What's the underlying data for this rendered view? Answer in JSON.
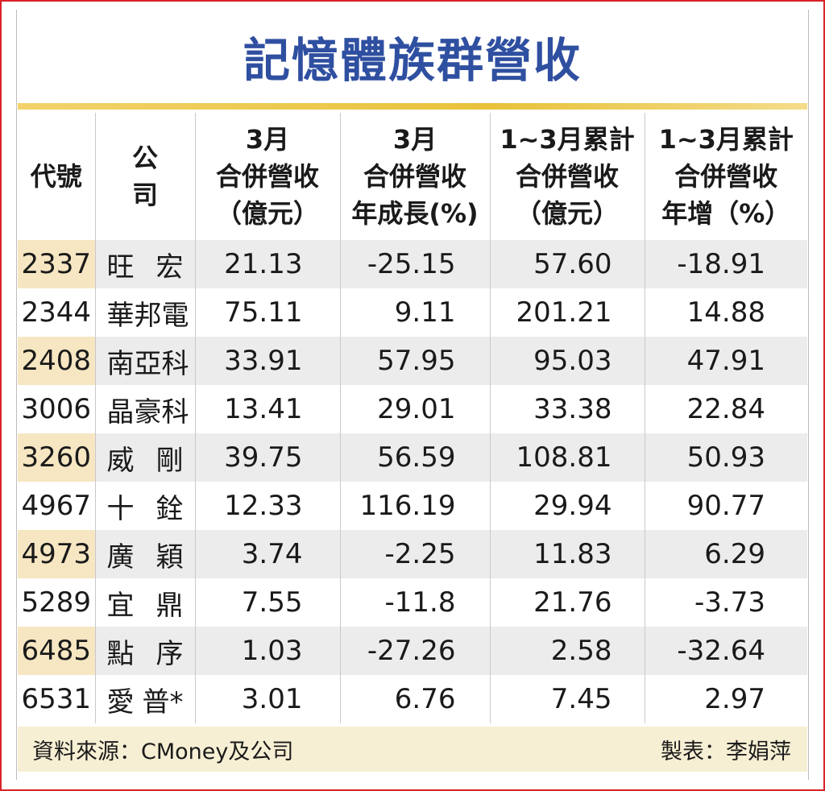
{
  "title": "記憶體族群營收",
  "headers": [
    "代號",
    "公　　司",
    "3月\n合併營收\n（億元）",
    "3月\n合併營收\n年成長(%)",
    "1~3月累計\n合併營收\n（億元）",
    "1~3月累計\n合併營收\n年增（%）"
  ],
  "rows": [
    {
      "code": "2337",
      "company": [
        "旺",
        "宏"
      ],
      "mar_rev": "21.13",
      "mar_yoy": "-25.15",
      "q_rev": "57.60",
      "q_yoy": "-18.91"
    },
    {
      "code": "2344",
      "company": [
        "華邦電"
      ],
      "mar_rev": "75.11",
      "mar_yoy": "9.11",
      "q_rev": "201.21",
      "q_yoy": "14.88"
    },
    {
      "code": "2408",
      "company": [
        "南亞科"
      ],
      "mar_rev": "33.91",
      "mar_yoy": "57.95",
      "q_rev": "95.03",
      "q_yoy": "47.91"
    },
    {
      "code": "3006",
      "company": [
        "晶豪科"
      ],
      "mar_rev": "13.41",
      "mar_yoy": "29.01",
      "q_rev": "33.38",
      "q_yoy": "22.84"
    },
    {
      "code": "3260",
      "company": [
        "威",
        "剛"
      ],
      "mar_rev": "39.75",
      "mar_yoy": "56.59",
      "q_rev": "108.81",
      "q_yoy": "50.93"
    },
    {
      "code": "4967",
      "company": [
        "十",
        "銓"
      ],
      "mar_rev": "12.33",
      "mar_yoy": "116.19",
      "q_rev": "29.94",
      "q_yoy": "90.77"
    },
    {
      "code": "4973",
      "company": [
        "廣",
        "穎"
      ],
      "mar_rev": "3.74",
      "mar_yoy": "-2.25",
      "q_rev": "11.83",
      "q_yoy": "6.29"
    },
    {
      "code": "5289",
      "company": [
        "宜",
        "鼎"
      ],
      "mar_rev": "7.55",
      "mar_yoy": "-11.8",
      "q_rev": "21.76",
      "q_yoy": "-3.73"
    },
    {
      "code": "6485",
      "company": [
        "點",
        "序"
      ],
      "mar_rev": "1.03",
      "mar_yoy": "-27.26",
      "q_rev": "2.58",
      "q_yoy": "-32.64"
    },
    {
      "code": "6531",
      "company": [
        "愛",
        "普*"
      ],
      "mar_rev": "3.01",
      "mar_yoy": "6.76",
      "q_rev": "7.45",
      "q_yoy": "2.97"
    }
  ],
  "source": "資料來源：CMoney及公司",
  "credit": "製表：李娟萍",
  "colors": {
    "title": "#2f4fa0",
    "frame": "#d8232a",
    "rule": "#e8c23a",
    "band": "#ececec",
    "code_band": "#f6e6c2",
    "footer": "#f7efd4"
  }
}
